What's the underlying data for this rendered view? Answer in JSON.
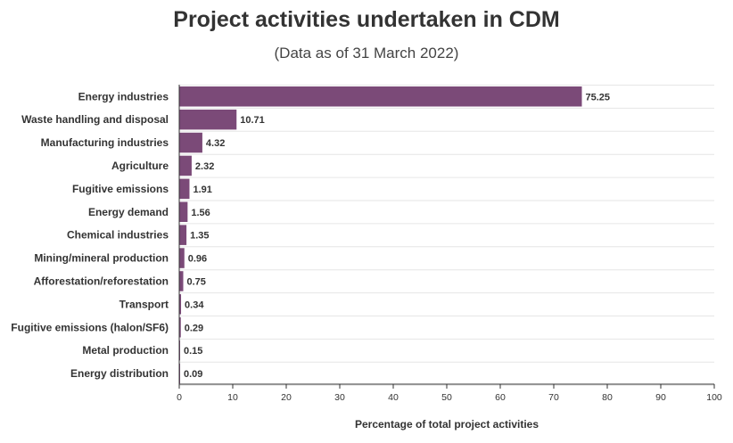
{
  "chart_data": {
    "type": "bar",
    "orientation": "horizontal",
    "title": "Project activities undertaken in CDM",
    "subtitle": "(Data as of 31 March 2022)",
    "xlabel": "Percentage of total project activities",
    "ylabel": "",
    "xlim": [
      0,
      100
    ],
    "ticks": [
      "0",
      "10",
      "20",
      "30",
      "40",
      "50",
      "60",
      "70",
      "80",
      "90",
      "100"
    ],
    "grid": true,
    "bar_color": "#7b4a78",
    "categories": [
      "Energy industries",
      "Waste handling and disposal",
      "Manufacturing industries",
      "Agriculture",
      "Fugitive emissions",
      "Energy demand",
      "Chemical industries",
      "Mining/mineral production",
      "Afforestation/reforestation",
      "Transport",
      "Fugitive emissions (halon/SF6)",
      "Metal production",
      "Energy distribution"
    ],
    "values": [
      75.25,
      10.71,
      4.32,
      2.32,
      1.91,
      1.56,
      1.35,
      0.96,
      0.75,
      0.34,
      0.29,
      0.15,
      0.09
    ],
    "value_labels": [
      "75.25",
      "10.71",
      "4.32",
      "2.32",
      "1.91",
      "1.56",
      "1.35",
      "0.96",
      "0.75",
      "0.34",
      "0.29",
      "0.15",
      "0.09"
    ]
  }
}
